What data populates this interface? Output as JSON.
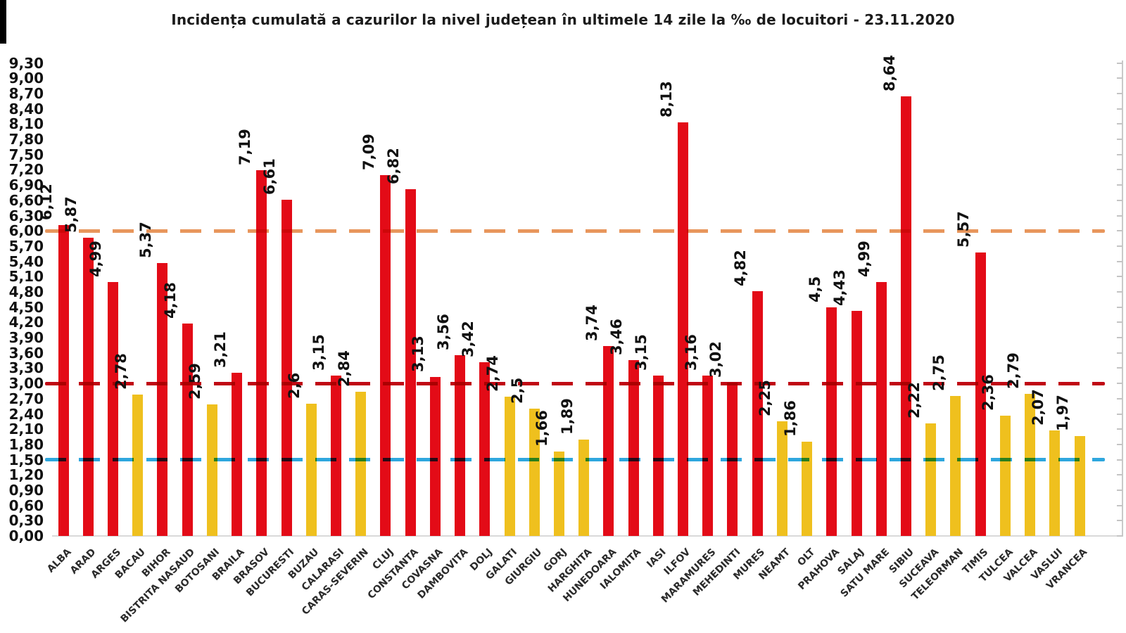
{
  "chart_data": {
    "type": "bar",
    "title": "Incidența cumulată a cazurilor la nivel județean în ultimele 14 zile la ‰ de locuitori - 23.11.2020",
    "xlabel": "",
    "ylabel": "",
    "ylim": [
      0,
      9.3
    ],
    "ytick_step": 0.3,
    "ytick_labels": [
      "0,00",
      "0,30",
      "0,60",
      "0,90",
      "1,20",
      "1,50",
      "1,80",
      "2,10",
      "2,40",
      "2,70",
      "3,00",
      "3,30",
      "3,60",
      "3,90",
      "4,20",
      "4,50",
      "4,80",
      "5,10",
      "5,40",
      "5,70",
      "6,00",
      "6,30",
      "6,60",
      "6,90",
      "7,20",
      "7,50",
      "7,80",
      "8,10",
      "8,40",
      "8,70",
      "9,00",
      "9,30"
    ],
    "decimal_separator": ",",
    "grid": false,
    "legend": null,
    "categories": [
      "ALBA",
      "ARAD",
      "ARGES",
      "BACAU",
      "BIHOR",
      "BISTRITA NASAUD",
      "BOTOSANI",
      "BRAILA",
      "BRASOV",
      "BUCURESTI",
      "BUZAU",
      "CALARASI",
      "CARAS-SEVERIN",
      "CLUJ",
      "CONSTANTA",
      "COVASNA",
      "DAMBOVITA",
      "DOLJ",
      "GALATI",
      "GIURGIU",
      "GORJ",
      "HARGHITA",
      "HUNEDOARA",
      "IALOMITA",
      "IASI",
      "ILFOV",
      "MARAMURES",
      "MEHEDINTI",
      "MURES",
      "NEAMT",
      "OLT",
      "PRAHOVA",
      "SALAJ",
      "SATU MARE",
      "SIBIU",
      "SUCEAVA",
      "TELEORMAN",
      "TIMIS",
      "TULCEA",
      "VALCEA",
      "VASLUI",
      "VRANCEA"
    ],
    "values": [
      6.12,
      5.87,
      4.99,
      2.78,
      5.37,
      4.18,
      2.59,
      3.21,
      7.19,
      6.61,
      2.6,
      3.15,
      2.84,
      7.09,
      6.82,
      3.13,
      3.56,
      3.42,
      2.74,
      2.5,
      1.66,
      1.89,
      3.74,
      3.46,
      3.15,
      8.13,
      3.16,
      3.02,
      4.82,
      2.25,
      1.86,
      4.5,
      4.43,
      4.99,
      8.64,
      2.22,
      2.75,
      5.57,
      2.36,
      2.79,
      2.07,
      1.97
    ],
    "value_labels": [
      "6,12",
      "5,87",
      "4,99",
      "2,78",
      "5,37",
      "4,18",
      "2,59",
      "3,21",
      "7,19",
      "6,61",
      "2,6",
      "3,15",
      "2,84",
      "7,09",
      "6,82",
      "3,13",
      "3,56",
      "3,42",
      "2,74",
      "2,5",
      "1,66",
      "1,89",
      "3,74",
      "3,46",
      "3,15",
      "8,13",
      "3,16",
      "3,02",
      "4,82",
      "2,25",
      "1,86",
      "4,5",
      "4,43",
      "4,99",
      "8,64",
      "2,22",
      "2,75",
      "5,57",
      "2,36",
      "2,79",
      "2,07",
      "1,97"
    ],
    "bar_color_names": [
      "red",
      "red",
      "red",
      "yellow",
      "red",
      "red",
      "yellow",
      "red",
      "red",
      "red",
      "yellow",
      "red",
      "yellow",
      "red",
      "red",
      "red",
      "red",
      "red",
      "yellow",
      "yellow",
      "yellow",
      "yellow",
      "red",
      "red",
      "red",
      "red",
      "red",
      "red",
      "red",
      "yellow",
      "yellow",
      "red",
      "red",
      "red",
      "red",
      "yellow",
      "yellow",
      "red",
      "yellow",
      "yellow",
      "yellow",
      "yellow"
    ],
    "color_threshold": 3.0,
    "palette": {
      "red": "#e30b17",
      "yellow": "#efc01e"
    },
    "threshold_lines": [
      {
        "value": 6.0,
        "color": "#e8965c",
        "style": "dashed",
        "name": "threshold-6"
      },
      {
        "value": 3.0,
        "color": "#c00814",
        "style": "dashed",
        "name": "threshold-3"
      },
      {
        "value": 1.5,
        "color": "#2ea7de",
        "style": "dashed",
        "name": "threshold-1-5"
      }
    ]
  }
}
